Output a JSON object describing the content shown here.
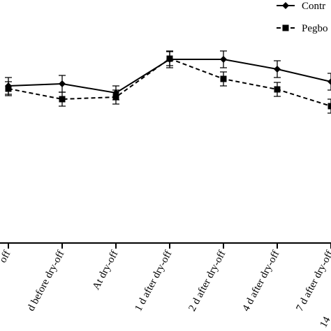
{
  "chart_data": {
    "type": "line",
    "categories": [
      "off",
      "d before dry-off",
      "At dry-off",
      "1 d after dry-off",
      "2 d after dry-off",
      "4 d after dry-off",
      "7 d after dry-off",
      "14"
    ],
    "series": [
      {
        "name": "Contr",
        "color": "#000000",
        "dash": false,
        "marker": "diamond",
        "values": [
          225,
          228,
          215,
          263,
          263,
          249,
          231,
          null
        ],
        "errors": [
          12,
          12,
          10,
          12,
          12,
          12,
          12,
          null
        ]
      },
      {
        "name": "Pegbo",
        "color": "#000000",
        "dash": true,
        "marker": "square",
        "values": [
          221,
          206,
          209,
          264,
          235,
          220,
          196,
          null
        ],
        "errors": [
          10,
          10,
          10,
          10,
          10,
          10,
          10,
          null
        ]
      }
    ],
    "ylim": [
      0,
      348
    ]
  }
}
